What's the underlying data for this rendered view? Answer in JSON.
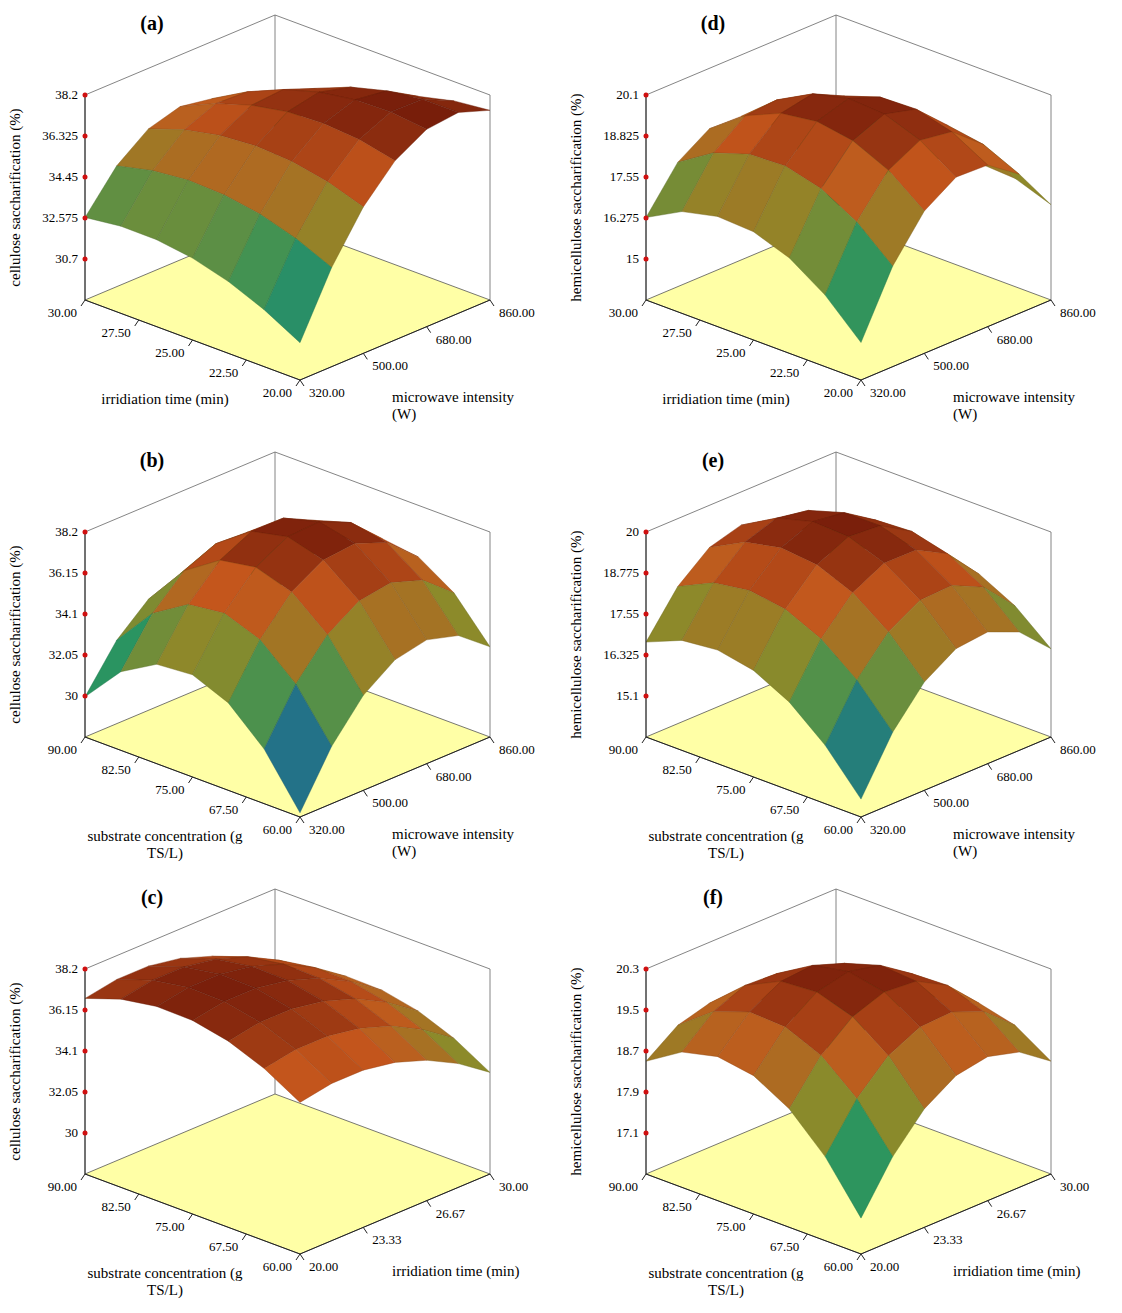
{
  "chart_data": [
    {
      "type": "surface",
      "title": "(a)",
      "x_label": "microwave intensity (W)",
      "y_label": "irridiation time (min)",
      "z_label": "cellulose saccharification (%)",
      "x": [
        320,
        410,
        500,
        590,
        680,
        770,
        860
      ],
      "y": [
        20,
        21.67,
        23.33,
        25,
        26.67,
        28.33,
        30
      ],
      "z": [
        [
          30.53,
          33.36,
          35.52,
          37.02,
          37.85,
          38.01,
          37.5
        ],
        [
          31.43,
          34.08,
          36.06,
          37.38,
          38.03,
          38.01,
          37.32
        ],
        [
          32.11,
          34.58,
          36.38,
          37.51,
          37.98,
          37.78,
          36.92
        ],
        [
          32.57,
          34.85,
          36.48,
          37.43,
          37.72,
          37.34,
          36.29
        ],
        [
          32.8,
          34.91,
          36.35,
          37.12,
          37.23,
          36.67,
          35.44
        ],
        [
          32.81,
          34.74,
          36.0,
          36.59,
          36.52,
          35.78,
          34.37
        ],
        [
          32.6,
          34.35,
          35.43,
          35.84,
          35.59,
          34.67,
          33.08
        ]
      ],
      "xlim": [
        320,
        860
      ],
      "xticks": [
        {
          "value": 320,
          "label": "320.00"
        },
        {
          "value": 500,
          "label": "500.00"
        },
        {
          "value": 680,
          "label": "680.00"
        },
        {
          "value": 860,
          "label": "860.00"
        }
      ],
      "ylim": [
        20,
        30
      ],
      "yticks": [
        {
          "value": 20,
          "label": "20.00"
        },
        {
          "value": 22.5,
          "label": "22.50"
        },
        {
          "value": 25,
          "label": "25.00"
        },
        {
          "value": 27.5,
          "label": "27.50"
        },
        {
          "value": 30,
          "label": "30.00"
        }
      ],
      "zlim": [
        28.825,
        38.2
      ],
      "zticks": [
        30.7,
        32.575,
        34.45,
        36.325,
        38.2
      ]
    },
    {
      "type": "surface",
      "title": "(b)",
      "x_label": "microwave intensity (W)",
      "y_label": "substrate concentration (g TS/L)",
      "z_label": "cellulose saccharification (%)",
      "x": [
        320,
        410,
        500,
        590,
        680,
        770,
        860
      ],
      "y": [
        60,
        65,
        70,
        75,
        80,
        85,
        90
      ],
      "z": [
        [
          28.16,
          30.82,
          32.7,
          33.81,
          34.14,
          33.69,
          32.46
        ],
        [
          30.68,
          33.26,
          35.06,
          36.08,
          36.33,
          35.79,
          34.48
        ],
        [
          32.32,
          34.81,
          36.53,
          37.47,
          37.63,
          37.01,
          35.62
        ],
        [
          33.06,
          35.47,
          37.1,
          37.96,
          38.04,
          37.34,
          35.86
        ],
        [
          32.92,
          35.24,
          36.79,
          37.57,
          37.56,
          36.78,
          35.22
        ],
        [
          31.88,
          34.13,
          35.59,
          36.28,
          36.19,
          35.33,
          33.68
        ],
        [
          29.96,
          32.12,
          33.5,
          34.11,
          33.94,
          32.99,
          31.26
        ]
      ],
      "xlim": [
        320,
        860
      ],
      "xticks": [
        {
          "value": 320,
          "label": "320.00"
        },
        {
          "value": 500,
          "label": "500.00"
        },
        {
          "value": 680,
          "label": "680.00"
        },
        {
          "value": 860,
          "label": "860.00"
        }
      ],
      "ylim": [
        60,
        90
      ],
      "yticks": [
        {
          "value": 60,
          "label": "60.00"
        },
        {
          "value": 67.5,
          "label": "67.50"
        },
        {
          "value": 75,
          "label": "75.00"
        },
        {
          "value": 82.5,
          "label": "82.50"
        },
        {
          "value": 90,
          "label": "90.00"
        }
      ],
      "zlim": [
        27.95,
        38.2
      ],
      "zticks": [
        30,
        32.05,
        34.1,
        36.15,
        38.2
      ]
    },
    {
      "type": "surface",
      "title": "(c)",
      "x_label": "irridiation time (min)",
      "y_label": "substrate concentration (g TS/L)",
      "z_label": "cellulose saccharification (%)",
      "x": [
        20,
        21.67,
        23.33,
        25,
        26.67,
        28.33,
        30
      ],
      "y": [
        60,
        65,
        70,
        75,
        80,
        85,
        90
      ],
      "z": [
        [
          35.53,
          35.81,
          35.81,
          35.53,
          34.97,
          34.14,
          33.03
        ],
        [
          36.56,
          36.84,
          36.84,
          36.56,
          36.01,
          35.17,
          34.06
        ],
        [
          37.26,
          37.54,
          37.54,
          37.26,
          36.71,
          35.87,
          34.76
        ],
        [
          37.63,
          37.91,
          37.91,
          37.63,
          37.07,
          36.24,
          35.13
        ],
        [
          37.66,
          37.94,
          37.94,
          37.66,
          37.11,
          36.27,
          35.16
        ],
        [
          37.36,
          37.64,
          37.64,
          37.36,
          36.81,
          35.97,
          34.86
        ],
        [
          36.73,
          37.01,
          37.01,
          36.73,
          36.17,
          35.34,
          34.23
        ]
      ],
      "xlim": [
        20,
        30
      ],
      "xticks": [
        {
          "value": 20,
          "label": "20.00"
        },
        {
          "value": 23.33,
          "label": "23.33"
        },
        {
          "value": 26.67,
          "label": "26.67"
        },
        {
          "value": 30,
          "label": "30.00"
        }
      ],
      "ylim": [
        60,
        90
      ],
      "yticks": [
        {
          "value": 60,
          "label": "60.00"
        },
        {
          "value": 67.5,
          "label": "67.50"
        },
        {
          "value": 75,
          "label": "75.00"
        },
        {
          "value": 82.5,
          "label": "82.50"
        },
        {
          "value": 90,
          "label": "90.00"
        }
      ],
      "zlim": [
        27.95,
        38.2
      ],
      "zticks": [
        30,
        32.05,
        34.1,
        36.15,
        38.2
      ]
    },
    {
      "type": "surface",
      "title": "(d)",
      "x_label": "microwave intensity (W)",
      "y_label": "irridiation time (min)",
      "z_label": "hemicellulose saccharification (%)",
      "x": [
        320,
        410,
        500,
        590,
        680,
        770,
        860
      ],
      "y": [
        20,
        21.67,
        23.33,
        25,
        26.67,
        28.33,
        30
      ],
      "z": [
        [
          14.89,
          16.85,
          18.15,
          18.79,
          18.75,
          18.05,
          16.69
        ],
        [
          15.95,
          17.81,
          19.0,
          19.52,
          19.37,
          18.56,
          17.09
        ],
        [
          16.69,
          18.43,
          19.51,
          19.92,
          19.66,
          18.74,
          17.15
        ],
        [
          17.09,
          18.72,
          19.69,
          19.99,
          19.62,
          18.59,
          16.89
        ],
        [
          17.15,
          18.67,
          19.53,
          19.72,
          19.24,
          18.1,
          16.29
        ],
        [
          16.89,
          18.3,
          19.04,
          19.12,
          18.53,
          17.27,
          15.35
        ],
        [
          16.29,
          17.59,
          18.22,
          18.19,
          17.49,
          16.12,
          14.09
        ]
      ],
      "xlim": [
        320,
        860
      ],
      "xticks": [
        {
          "value": 320,
          "label": "320.00"
        },
        {
          "value": 500,
          "label": "500.00"
        },
        {
          "value": 680,
          "label": "680.00"
        },
        {
          "value": 860,
          "label": "860.00"
        }
      ],
      "ylim": [
        20,
        30
      ],
      "yticks": [
        {
          "value": 20,
          "label": "20.00"
        },
        {
          "value": 22.5,
          "label": "22.50"
        },
        {
          "value": 25,
          "label": "25.00"
        },
        {
          "value": 27.5,
          "label": "27.50"
        },
        {
          "value": 30,
          "label": "30.00"
        }
      ],
      "zlim": [
        13.725,
        20.1
      ],
      "zticks": [
        15,
        16.275,
        17.55,
        18.825,
        20.1
      ]
    },
    {
      "type": "surface",
      "title": "(e)",
      "x_label": "microwave intensity (W)",
      "y_label": "substrate concentration (g TS/L)",
      "z_label": "hemicellulose saccharification (%)",
      "x": [
        320,
        410,
        500,
        590,
        680,
        770,
        860
      ],
      "y": [
        60,
        65,
        70,
        75,
        80,
        85,
        90
      ],
      "z": [
        [
          14.41,
          16.01,
          17.11,
          17.71,
          17.81,
          17.41,
          16.51
        ],
        [
          15.62,
          17.17,
          18.21,
          18.76,
          18.8,
          18.35,
          17.39
        ],
        [
          16.51,
          18.0,
          18.98,
          19.47,
          19.46,
          18.95,
          17.94
        ],
        [
          17.06,
          18.49,
          19.42,
          19.86,
          19.79,
          19.22,
          18.16
        ],
        [
          17.27,
          18.65,
          19.53,
          19.91,
          19.78,
          19.16,
          18.04
        ],
        [
          17.16,
          18.48,
          19.3,
          19.62,
          19.45,
          18.77,
          17.59
        ],
        [
          16.71,
          17.97,
          18.74,
          19.01,
          18.77,
          18.04,
          16.81
        ]
      ],
      "xlim": [
        320,
        860
      ],
      "xticks": [
        {
          "value": 320,
          "label": "320.00"
        },
        {
          "value": 500,
          "label": "500.00"
        },
        {
          "value": 680,
          "label": "680.00"
        },
        {
          "value": 860,
          "label": "860.00"
        }
      ],
      "ylim": [
        60,
        90
      ],
      "yticks": [
        {
          "value": 60,
          "label": "60.00"
        },
        {
          "value": 67.5,
          "label": "67.50"
        },
        {
          "value": 75,
          "label": "75.00"
        },
        {
          "value": 82.5,
          "label": "82.50"
        },
        {
          "value": 90,
          "label": "90.00"
        }
      ],
      "zlim": [
        13.875,
        20
      ],
      "zticks": [
        15.1,
        16.325,
        17.55,
        18.775,
        20
      ]
    },
    {
      "type": "surface",
      "title": "(f)",
      "x_label": "irridiation time (min)",
      "y_label": "substrate concentration (g TS/L)",
      "z_label": "hemicellulose saccharification (%)",
      "x": [
        20,
        21.67,
        23.33,
        25,
        26.67,
        28.33,
        30
      ],
      "y": [
        60,
        65,
        70,
        75,
        80,
        85,
        90
      ],
      "z": [
        [
          17.0,
          17.94,
          18.61,
          19.0,
          19.11,
          18.94,
          18.5
        ],
        [
          17.94,
          18.81,
          19.39,
          19.69,
          19.72,
          19.47,
          18.94
        ],
        [
          18.61,
          19.39,
          19.89,
          20.11,
          20.06,
          19.72,
          19.11
        ],
        [
          19.0,
          19.69,
          20.11,
          20.25,
          20.11,
          19.69,
          19.0
        ],
        [
          19.11,
          19.72,
          20.06,
          20.11,
          19.89,
          19.39,
          18.61
        ],
        [
          18.94,
          19.47,
          19.72,
          19.69,
          19.39,
          18.81,
          17.94
        ],
        [
          18.5,
          18.94,
          19.11,
          19.0,
          18.61,
          17.94,
          17.0
        ]
      ],
      "xlim": [
        20,
        30
      ],
      "xticks": [
        {
          "value": 20,
          "label": "20.00"
        },
        {
          "value": 23.33,
          "label": "23.33"
        },
        {
          "value": 26.67,
          "label": "26.67"
        },
        {
          "value": 30,
          "label": "30.00"
        }
      ],
      "ylim": [
        60,
        90
      ],
      "yticks": [
        {
          "value": 60,
          "label": "60.00"
        },
        {
          "value": 67.5,
          "label": "67.50"
        },
        {
          "value": 75,
          "label": "75.00"
        },
        {
          "value": 82.5,
          "label": "82.50"
        },
        {
          "value": 90,
          "label": "90.00"
        }
      ],
      "zlim": [
        16.3,
        20.3
      ],
      "zticks": [
        17.1,
        17.9,
        18.7,
        19.5,
        20.3
      ]
    }
  ]
}
